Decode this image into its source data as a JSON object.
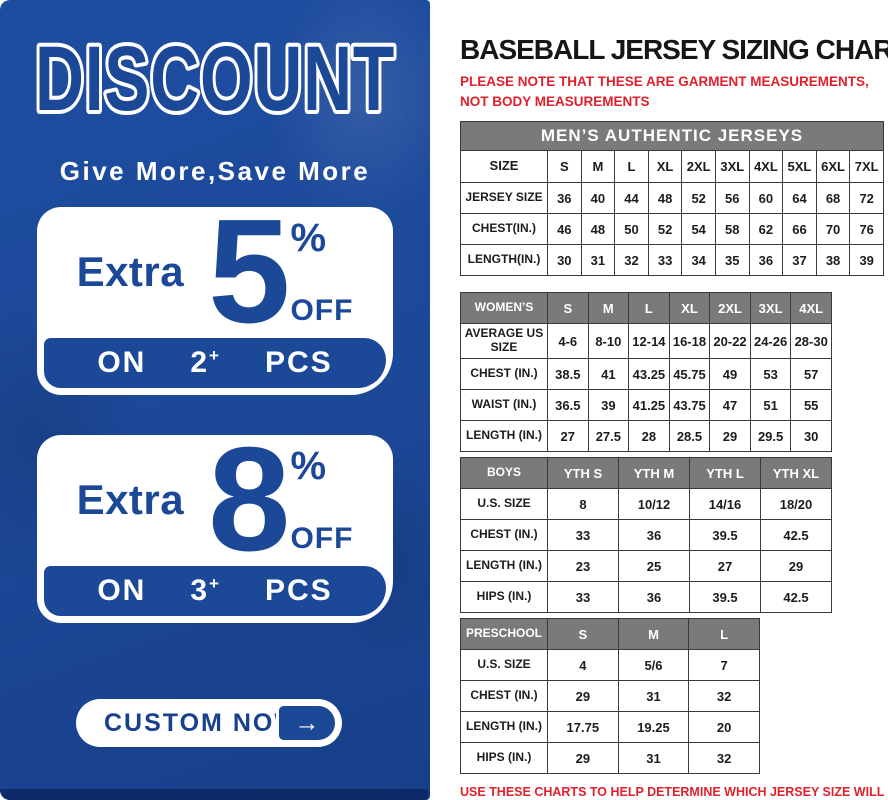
{
  "left_panel": {
    "title": "DISCOUNT",
    "subtitle": "Give More,Save More",
    "offers": [
      {
        "prefix": "Extra",
        "percent": "5",
        "percent_sign": "%",
        "off_label": "OFF",
        "on_label": "ON",
        "qty": "2",
        "plus": "+",
        "pcs_label": "PCS"
      },
      {
        "prefix": "Extra",
        "percent": "8",
        "percent_sign": "%",
        "off_label": "OFF",
        "on_label": "ON",
        "qty": "3",
        "plus": "+",
        "pcs_label": "PCS"
      }
    ],
    "cta": {
      "label": "CUSTOM NOW",
      "arrow": "→"
    }
  },
  "right_panel": {
    "title": "BASEBALL JERSEY SIZING CHART",
    "note_top": "PLEASE NOTE THAT THESE ARE GARMENT MEASUREMENTS, NOT BODY MEASUREMENTS",
    "note_bottom": "USE THESE CHARTS TO HELP DETERMINE WHICH JERSEY SIZE WILL BEST FIT YOU.",
    "tables": {
      "men": {
        "band": "MEN’S AUTHENTIC JERSEYS",
        "header": [
          "SIZE",
          "S",
          "M",
          "L",
          "XL",
          "2XL",
          "3XL",
          "4XL",
          "5XL",
          "6XL",
          "7XL"
        ],
        "rows": [
          [
            "JERSEY SIZE",
            "36",
            "40",
            "44",
            "48",
            "52",
            "56",
            "60",
            "64",
            "68",
            "72"
          ],
          [
            "CHEST(IN.)",
            "46",
            "48",
            "50",
            "52",
            "54",
            "58",
            "62",
            "66",
            "70",
            "76"
          ],
          [
            "LENGTH(IN.)",
            "30",
            "31",
            "32",
            "33",
            "34",
            "35",
            "36",
            "37",
            "38",
            "39"
          ]
        ]
      },
      "women": {
        "header": [
          "WOMEN’S",
          "S",
          "M",
          "L",
          "XL",
          "2XL",
          "3XL",
          "4XL"
        ],
        "rows": [
          [
            "AVERAGE US SIZE",
            "4-6",
            "8-10",
            "12-14",
            "16-18",
            "20-22",
            "24-26",
            "28-30"
          ],
          [
            "CHEST (IN.)",
            "38.5",
            "41",
            "43.25",
            "45.75",
            "49",
            "53",
            "57"
          ],
          [
            "WAIST (IN.)",
            "36.5",
            "39",
            "41.25",
            "43.75",
            "47",
            "51",
            "55"
          ],
          [
            "LENGTH (IN.)",
            "27",
            "27.5",
            "28",
            "28.5",
            "29",
            "29.5",
            "30"
          ]
        ]
      },
      "boys": {
        "header": [
          "BOYS",
          "YTH S",
          "YTH M",
          "YTH L",
          "YTH XL"
        ],
        "rows": [
          [
            "U.S. SIZE",
            "8",
            "10/12",
            "14/16",
            "18/20"
          ],
          [
            "CHEST (IN.)",
            "33",
            "36",
            "39.5",
            "42.5"
          ],
          [
            "LENGTH (IN.)",
            "23",
            "25",
            "27",
            "29"
          ],
          [
            "HIPS (IN.)",
            "33",
            "36",
            "39.5",
            "42.5"
          ]
        ]
      },
      "preschool": {
        "header": [
          "PRESCHOOL",
          "S",
          "M",
          "L"
        ],
        "rows": [
          [
            "U.S. SIZE",
            "4",
            "5/6",
            "7"
          ],
          [
            "CHEST (IN.)",
            "29",
            "31",
            "32"
          ],
          [
            "LENGTH (IN.)",
            "17.75",
            "19.25",
            "20"
          ],
          [
            "HIPS (IN.)",
            "29",
            "31",
            "32"
          ]
        ]
      }
    }
  },
  "colors": {
    "panel_blue": "#1c4898",
    "accent_blue_text": "#17418e",
    "header_gray": "#7a7a7a",
    "note_red": "#e0202c",
    "title_black": "#161616"
  }
}
